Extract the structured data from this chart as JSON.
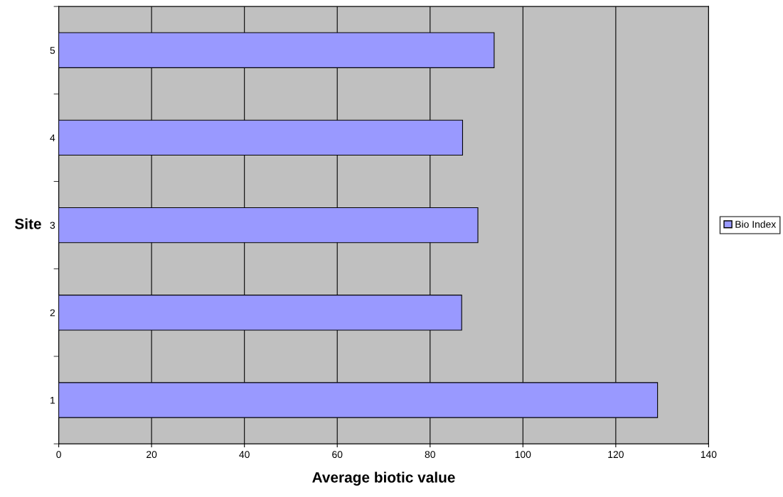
{
  "chart_data": {
    "type": "bar",
    "orientation": "horizontal",
    "xlabel": "Average biotic value",
    "ylabel": "Site",
    "categories": [
      "5",
      "4",
      "3",
      "2",
      "1"
    ],
    "series": [
      {
        "name": "Bio Index",
        "color": "#9999ff",
        "values": [
          93.8,
          87.0,
          90.3,
          86.8,
          129.0
        ]
      }
    ],
    "xlim": [
      0,
      140
    ],
    "xticks": [
      0,
      20,
      40,
      60,
      80,
      100,
      120,
      140
    ],
    "grid": "x",
    "legend": "right"
  }
}
